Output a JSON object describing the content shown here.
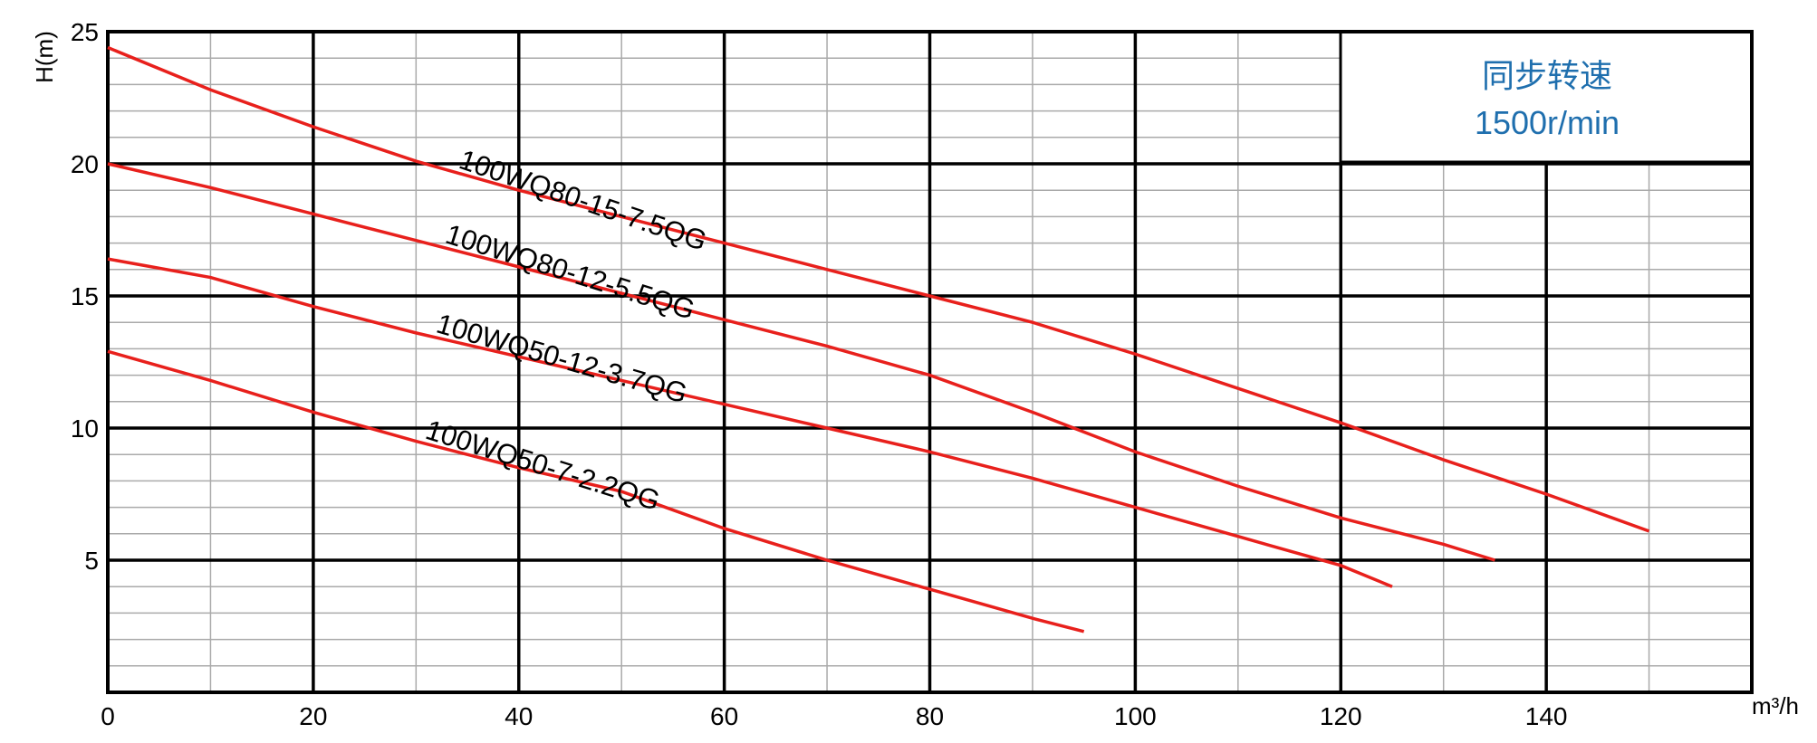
{
  "chart_data": {
    "type": "line",
    "x_label": "m³/h",
    "y_label": "H(m)",
    "note_lines": [
      "同步转速",
      "1500r/min"
    ],
    "note_color": "#1f6fae",
    "xlim": [
      0,
      160
    ],
    "xticks": [
      0,
      20,
      40,
      60,
      80,
      100,
      120,
      140
    ],
    "ylim": [
      0,
      25
    ],
    "yticks": [
      5,
      10,
      15,
      20,
      25
    ],
    "grid": true,
    "minor_xstep": 10,
    "minor_ystep": 1,
    "series": [
      {
        "name": "100WQ80-15-7.5QG",
        "color": "#e8201c",
        "x": [
          0,
          10,
          20,
          30,
          40,
          50,
          60,
          70,
          80,
          90,
          100,
          110,
          120,
          130,
          140,
          150
        ],
        "values": [
          24.4,
          22.8,
          21.4,
          20.1,
          19,
          18,
          17,
          16,
          15,
          14,
          12.8,
          11.5,
          10.2,
          8.8,
          7.5,
          6.1
        ]
      },
      {
        "name": "100WQ80-12-5.5QG",
        "color": "#e8201c",
        "x": [
          0,
          10,
          20,
          30,
          40,
          50,
          60,
          70,
          80,
          90,
          100,
          110,
          120,
          130,
          135
        ],
        "values": [
          20,
          19.1,
          18.1,
          17.1,
          16.1,
          15.1,
          14.1,
          13.1,
          12,
          10.6,
          9.1,
          7.8,
          6.6,
          5.6,
          5
        ]
      },
      {
        "name": "100WQ50-12-3.7QG",
        "color": "#e8201c",
        "x": [
          0,
          10,
          20,
          30,
          40,
          50,
          60,
          70,
          80,
          90,
          100,
          110,
          120,
          125
        ],
        "values": [
          16.4,
          15.7,
          14.6,
          13.6,
          12.7,
          11.8,
          10.9,
          10,
          9.1,
          8.1,
          7,
          5.9,
          4.8,
          4
        ]
      },
      {
        "name": "100WQ50-7-2.2QG",
        "color": "#e8201c",
        "x": [
          0,
          10,
          20,
          30,
          40,
          50,
          60,
          70,
          80,
          90,
          95
        ],
        "values": [
          12.9,
          11.8,
          10.6,
          9.5,
          8.5,
          7.6,
          6.2,
          5,
          3.9,
          2.8,
          2.3
        ]
      }
    ]
  }
}
